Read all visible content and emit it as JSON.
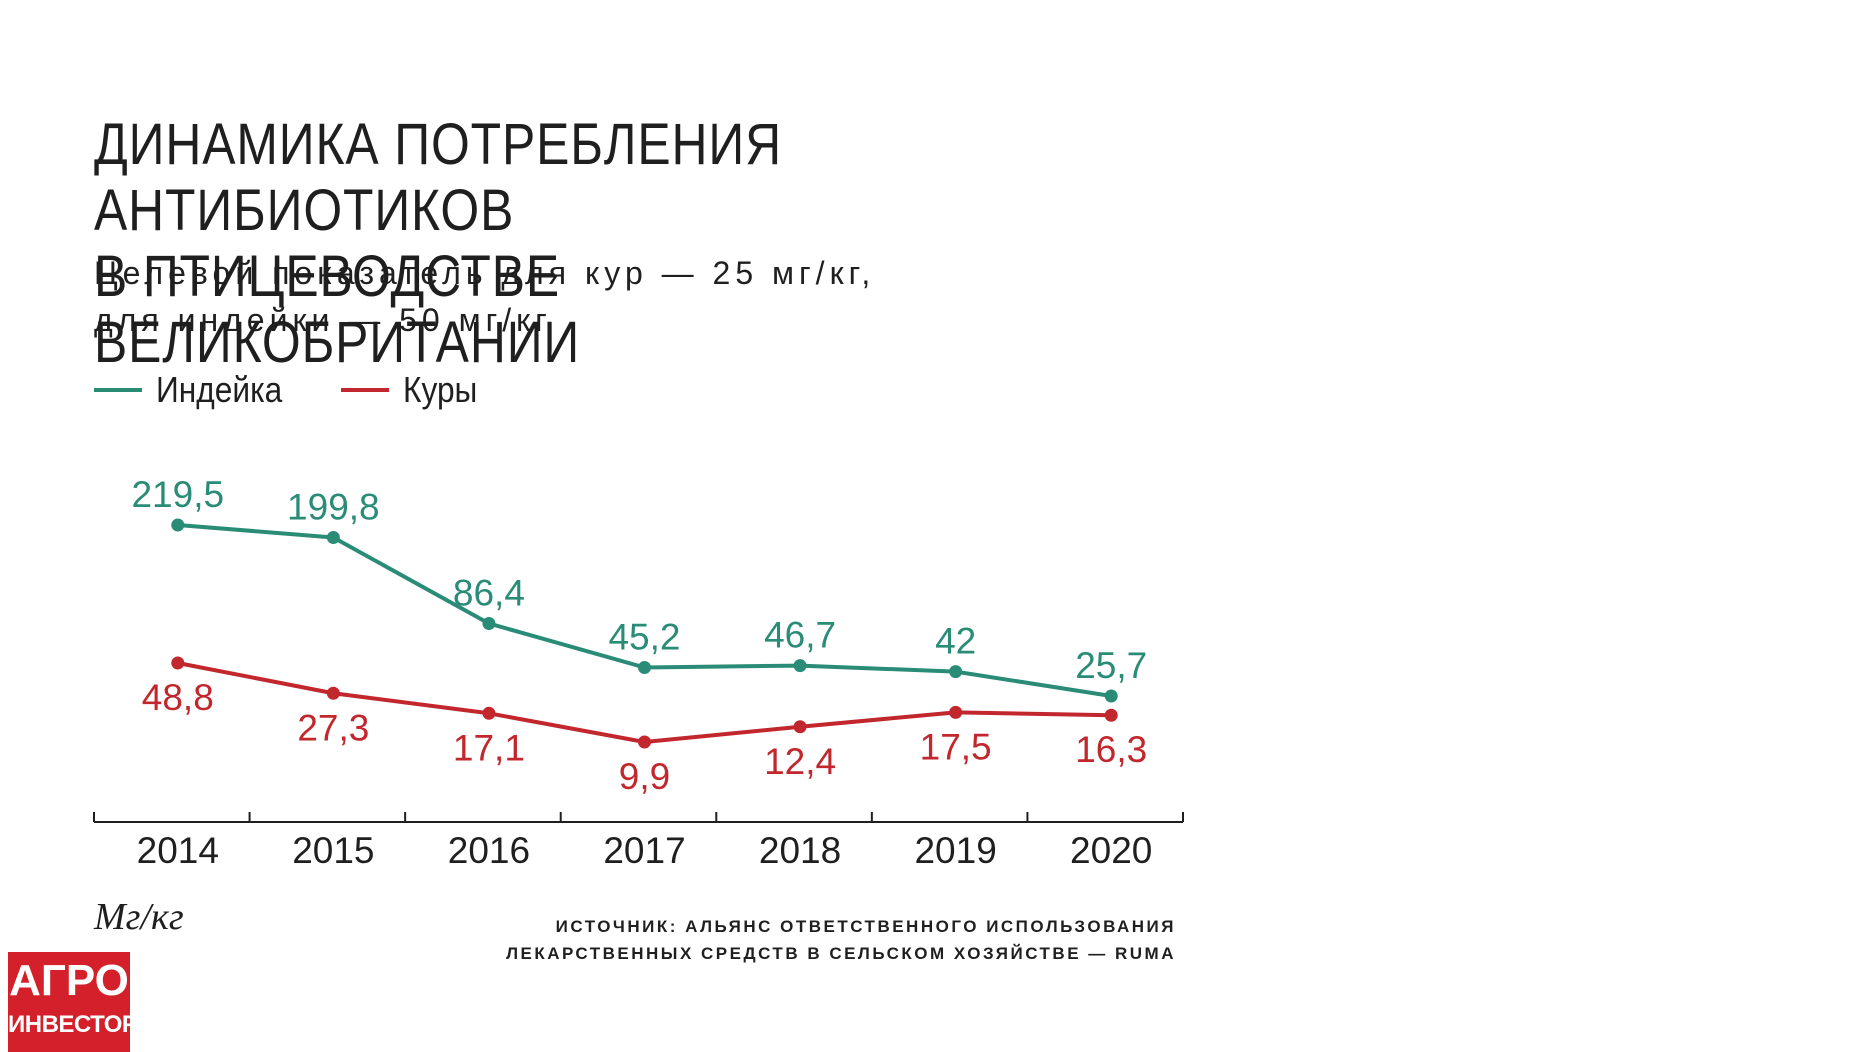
{
  "title_lines": [
    "ДИНАМИКА ПОТРЕБЛЕНИЯ АНТИБИОТИКОВ",
    "В ПТИЦЕВОДСТВЕ ВЕЛИКОБРИТАНИИ"
  ],
  "subtitle_lines": [
    "Целевой показатель для кур — 25 мг/кг,",
    "для индейки — 50 мг/кг"
  ],
  "unit": "Мг/кг",
  "source_lines": [
    "ИСТОЧНИК: АЛЬЯНС ОТВЕТСТВЕННОГО ИСПОЛЬЗОВАНИЯ",
    "ЛЕКАРСТВЕННЫХ СРЕДСТВ В СЕЛЬСКОМ ХОЗЯЙСТВЕ — RUMA"
  ],
  "logo": {
    "top": "АГРО",
    "bottom": "ИНВЕСТОР",
    "color": "#d3202a"
  },
  "chart_data": {
    "type": "line",
    "x": [
      "2014",
      "2015",
      "2016",
      "2017",
      "2018",
      "2019",
      "2020"
    ],
    "series": [
      {
        "name": "Индейка",
        "color": "#2a8c76",
        "values": [
          219.5,
          199.8,
          86.4,
          45.2,
          46.7,
          42,
          25.7
        ],
        "labels": [
          "219,5",
          "199,8",
          "86,4",
          "45,2",
          "46,7",
          "42",
          "25,7"
        ]
      },
      {
        "name": "Куры",
        "color": "#c1272d",
        "values": [
          48.8,
          27.3,
          17.1,
          9.9,
          12.4,
          17.5,
          16.3
        ],
        "labels": [
          "48,8",
          "27,3",
          "17,1",
          "9,9",
          "12,4",
          "17,5",
          "16,3"
        ]
      }
    ],
    "y_axis_visible": false,
    "grid": false,
    "legend_position": "top-left"
  }
}
